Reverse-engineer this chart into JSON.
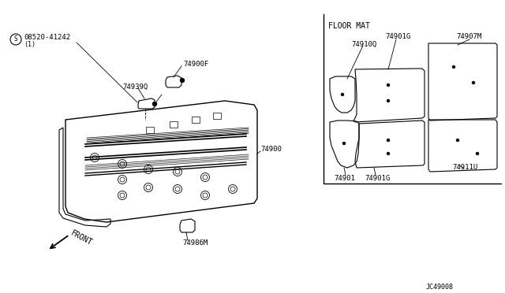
{
  "bg_color": "#ffffff",
  "line_color": "#000000",
  "fig_width": 6.4,
  "fig_height": 3.72,
  "dpi": 100,
  "diagram_code": "JC49008",
  "floor_mat_label": "FLOOR MAT",
  "parts": {
    "main_label": "74900",
    "front_label": "FRONT",
    "s_number": "08520-41242",
    "s_sub": "(1)",
    "part_74900F": "74900F",
    "part_74939Q": "74939Q",
    "part_74986M": "74986M",
    "part_74910Q": "74910Q",
    "part_74901G_top": "74901G",
    "part_74907M": "74907M",
    "part_74901": "74901",
    "part_74901G_bot": "74901G",
    "part_74911U": "74911U"
  }
}
